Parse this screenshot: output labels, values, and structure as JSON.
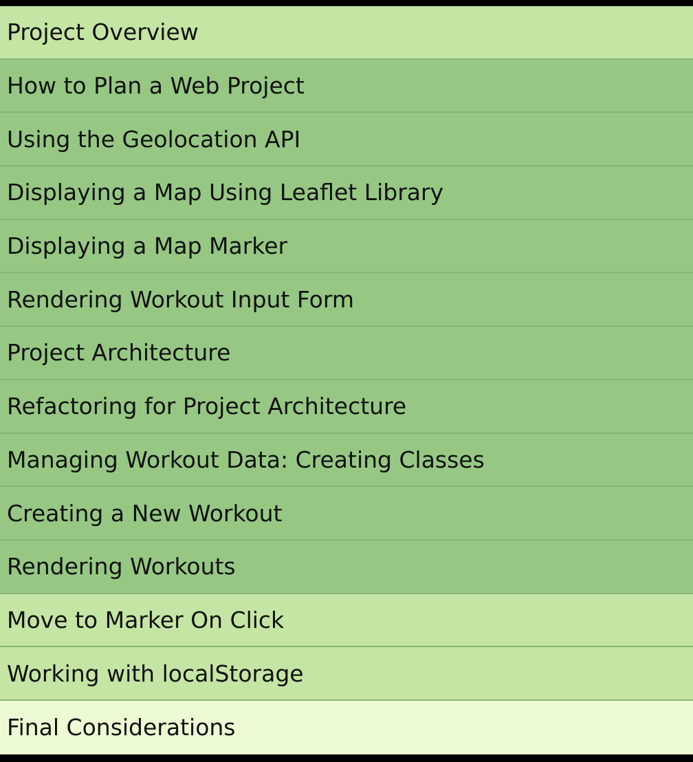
{
  "lessons": [
    {
      "label": "Project Overview",
      "shade": "light"
    },
    {
      "label": "How to Plan a Web Project",
      "shade": "medium"
    },
    {
      "label": "Using the Geolocation API",
      "shade": "medium"
    },
    {
      "label": "Displaying a Map Using Leaflet Library",
      "shade": "medium"
    },
    {
      "label": "Displaying a Map Marker",
      "shade": "medium"
    },
    {
      "label": "Rendering Workout Input Form",
      "shade": "medium"
    },
    {
      "label": "Project Architecture",
      "shade": "medium"
    },
    {
      "label": "Refactoring for Project Architecture",
      "shade": "medium"
    },
    {
      "label": "Managing Workout Data: Creating Classes",
      "shade": "medium"
    },
    {
      "label": "Creating a New Workout",
      "shade": "medium"
    },
    {
      "label": "Rendering Workouts",
      "shade": "medium"
    },
    {
      "label": "Move to Marker On Click",
      "shade": "light"
    },
    {
      "label": "Working with localStorage",
      "shade": "light"
    },
    {
      "label": "Final Considerations",
      "shade": "pale"
    }
  ],
  "colors": {
    "light": "#c4e5a3",
    "medium": "#96c884",
    "pale": "#ecfbd4",
    "frame": "#000000"
  }
}
